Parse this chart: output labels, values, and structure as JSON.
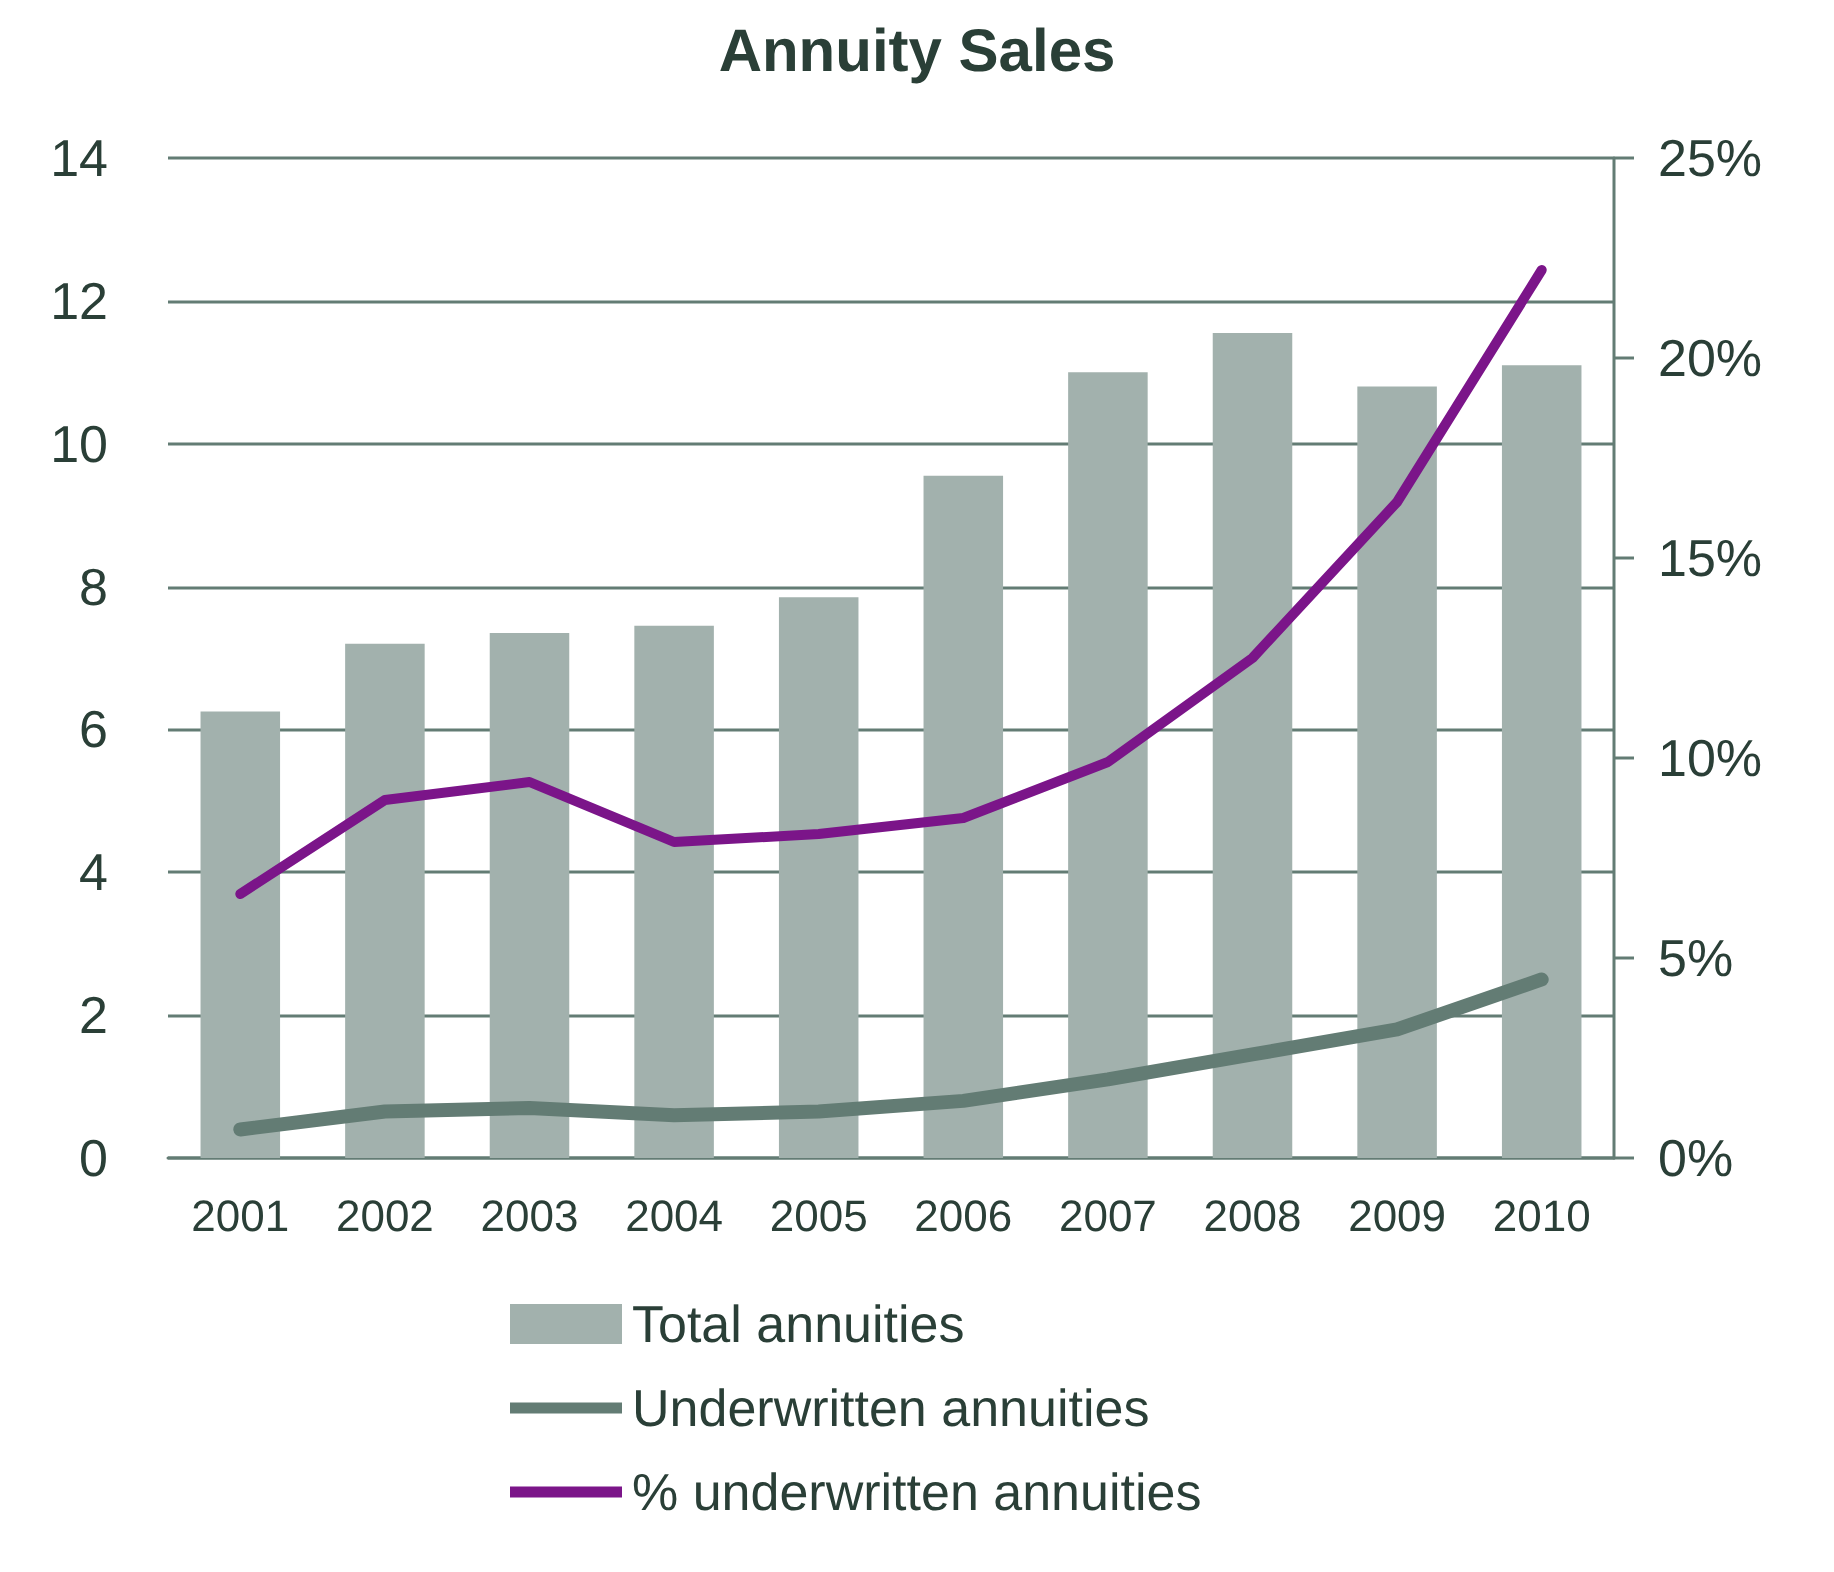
{
  "chart_data": {
    "type": "bar",
    "title": "Annuity Sales",
    "categories": [
      "2001",
      "2002",
      "2003",
      "2004",
      "2005",
      "2006",
      "2007",
      "2008",
      "2009",
      "2010"
    ],
    "series": [
      {
        "name": "Total annuities",
        "color": "#a2b1ad",
        "values": [
          6.25,
          7.2,
          7.35,
          7.45,
          7.85,
          9.55,
          11.0,
          11.55,
          10.8,
          11.1
        ]
      },
      {
        "name": "Underwritten annuities",
        "type": "line",
        "color": "#637c74",
        "values": [
          0.4,
          0.65,
          0.7,
          0.6,
          0.65,
          0.8,
          1.1,
          1.45,
          1.8,
          2.5
        ]
      },
      {
        "name": "% underwritten annuities",
        "type": "line",
        "axis": "y2",
        "color": "#7b1589",
        "values": [
          6.6,
          8.95,
          9.4,
          7.9,
          8.1,
          8.5,
          9.9,
          12.5,
          16.4,
          22.2
        ]
      }
    ],
    "ylim": [
      0,
      14
    ],
    "yticks": [
      0,
      2,
      4,
      6,
      8,
      10,
      12,
      14
    ],
    "y2lim": [
      0,
      25
    ],
    "y2ticks": [
      {
        "value": 0,
        "label": "0%"
      },
      {
        "value": 5,
        "label": "5%"
      },
      {
        "value": 10,
        "label": "10%"
      },
      {
        "value": 15,
        "label": "15%"
      },
      {
        "value": 20,
        "label": "20%"
      },
      {
        "value": 25,
        "label": "25%"
      }
    ],
    "grid": "y",
    "legend": "bottom",
    "marker": "none",
    "line_style": "solid"
  }
}
